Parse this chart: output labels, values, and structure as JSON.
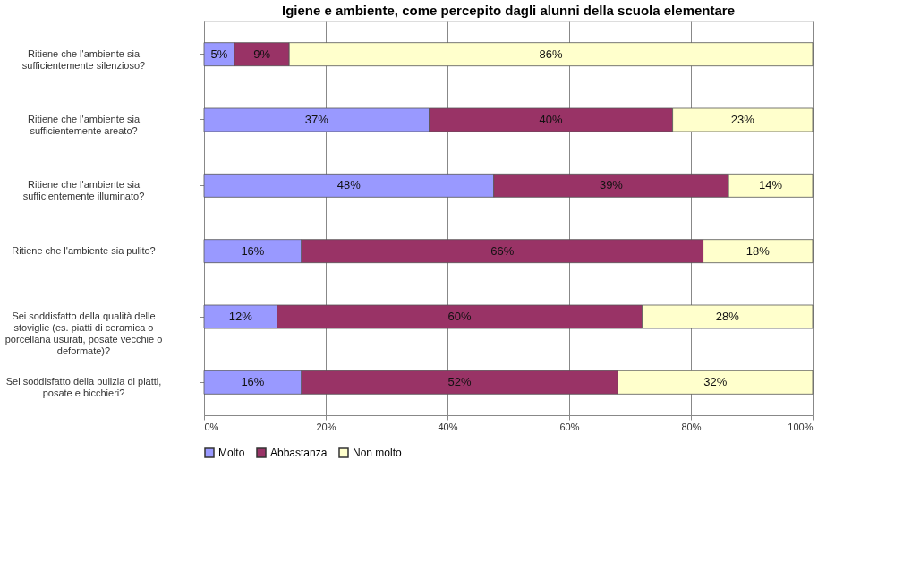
{
  "chart_data": {
    "type": "bar",
    "orientation": "horizontal",
    "stacked": true,
    "title": "Igiene e ambiente, come percepito dagli alunni della scuola elementare",
    "categories": [
      "Ritiene che l'ambiente sia sufficientemente silenzioso?",
      "Ritiene che l'ambiente sia sufficientemente areato?",
      "Ritiene che l'ambiente sia sufficientemente illuminato?",
      "Ritiene che l'ambiente sia pulito?",
      "Sei soddisfatto della qualità delle stoviglie (es. piatti di ceramica o porcellana usurati, posate vecchie o deformate)?",
      "Sei soddisfatto della pulizia di piatti, posate e bicchieri?"
    ],
    "series": [
      {
        "name": "Molto",
        "color": "#9999ff",
        "values": [
          5,
          37,
          47.6,
          16,
          12,
          16
        ]
      },
      {
        "name": "Abbastanza",
        "color": "#993366",
        "values": [
          9,
          40,
          38.6,
          66,
          60,
          52
        ]
      },
      {
        "name": "Non molto",
        "color": "#ffffcc",
        "values": [
          86,
          23,
          13.8,
          18,
          28,
          32
        ]
      }
    ],
    "xlim": [
      0,
      100
    ],
    "xticks": [
      {
        "value": 0,
        "label": "0%"
      },
      {
        "value": 20,
        "label": "20%"
      },
      {
        "value": 40,
        "label": "40%"
      },
      {
        "value": 60,
        "label": "60%"
      },
      {
        "value": 80,
        "label": "80%"
      },
      {
        "value": 100,
        "label": "100%"
      }
    ],
    "value_labels": [
      [
        "5%",
        "37%",
        "48%",
        "16%",
        "12%",
        "16%"
      ],
      [
        "9%",
        "40%",
        "39%",
        "66%",
        "60%",
        "52%"
      ],
      [
        "86%",
        "23%",
        "14%",
        "18%",
        "28%",
        "32%"
      ]
    ],
    "grid": "x",
    "legend": "bottom"
  }
}
